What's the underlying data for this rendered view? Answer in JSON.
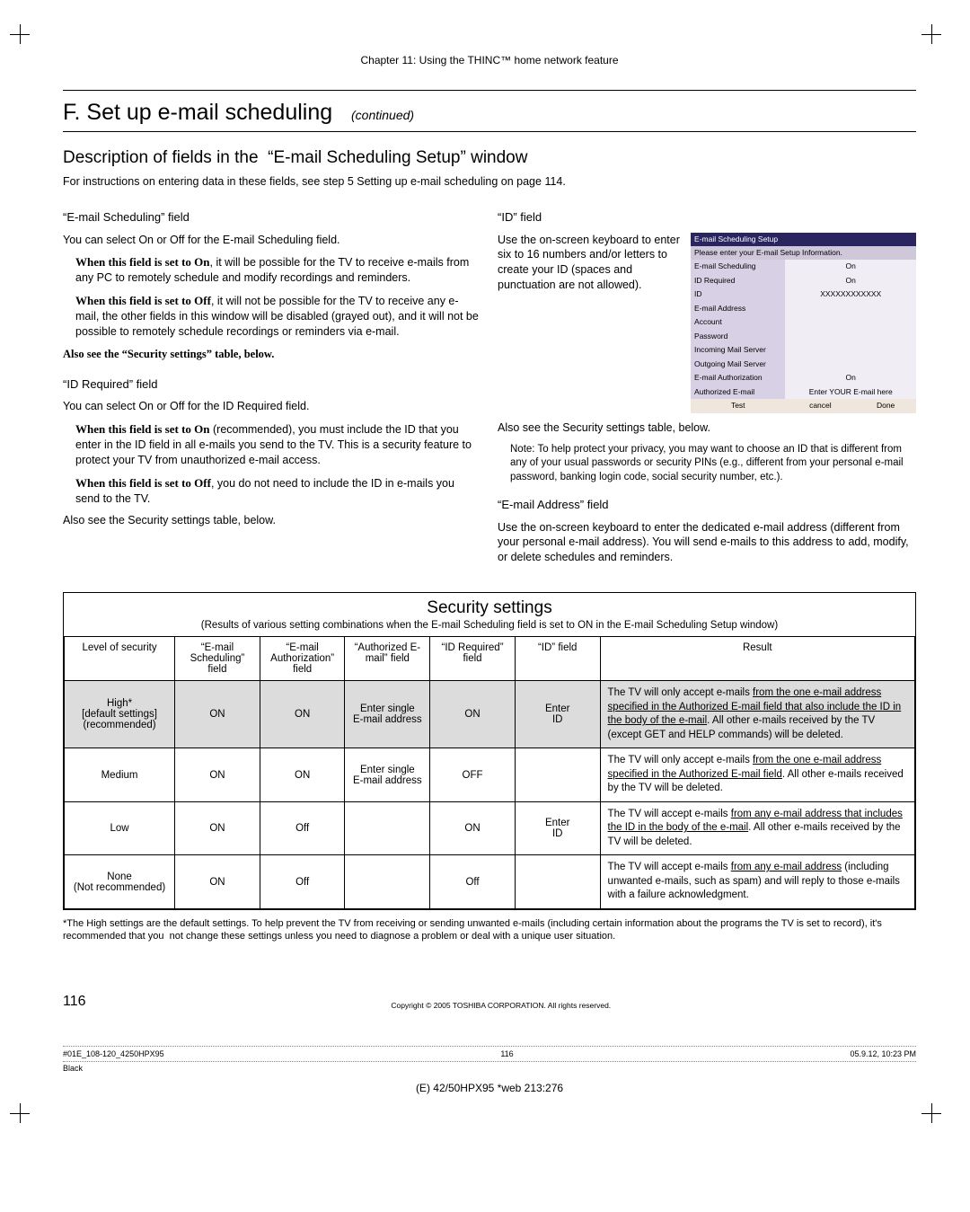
{
  "chapter": "Chapter 11: Using the THINC™ home network feature",
  "heading": "F. Set up e-mail scheduling",
  "heading_cont": "(continued)",
  "subheading": "Description of fields in the  “E-mail Scheduling Setup” window",
  "intro": "For instructions on entering data in these fields, see step 5 Setting up e-mail scheduling on page 114.",
  "left": {
    "f1_hdr": "“E-mail Scheduling” field",
    "f1_p1": "You can select On or Off for the E-mail Scheduling field.",
    "f1_on_lead": "When this field is set to On",
    "f1_on_rest": ", it will be possible for the TV to receive e-mails from any PC to remotely schedule and modify recordings and reminders.",
    "f1_off_lead": "When this field is set to Off",
    "f1_off_rest": ", it will not be possible for the TV to receive any e-mail, the other fields in this window will be disabled (grayed out), and it will not be possible to remotely schedule recordings or reminders via e-mail.",
    "f1_also": "Also see the “Security settings” table, below.",
    "f2_hdr": "“ID Required” field",
    "f2_p1": "You can select On or Off for the ID Required field.",
    "f2_on_lead": "When this field is set to On",
    "f2_on_rest": " (recommended), you must include the ID that you enter in the ID field in all e-mails you send to the TV. This is a security feature to protect your TV from unauthorized e-mail access.",
    "f2_off_lead": "When this field is set to Off",
    "f2_off_rest": ", you do not need to include the ID in e-mails you send to the TV.",
    "f2_also": "Also see the Security settings table, below."
  },
  "right": {
    "id_hdr": "“ID” field",
    "id_text": "Use the on-screen keyboard to enter six to 16 numbers and/or letters to create your ID (spaces and punctuation are not allowed).",
    "id_also": "Also see the Security settings table, below.",
    "id_note": "Note: To help protect your privacy, you may want to choose an ID that is different from any of your usual passwords or security PINs (e.g., different from your personal e-mail password, banking login code, social security number, etc.).",
    "addr_hdr": "“E-mail Address” field",
    "addr_text": "Use the on-screen keyboard to enter the dedicated e-mail address (different from your personal e-mail address). You will send e-mails to this address to add, modify, or delete schedules and reminders."
  },
  "mini": {
    "title": "E-mail Scheduling Setup",
    "pls": "Please enter your E-mail Setup Information.",
    "rows": [
      [
        "E-mail Scheduling",
        "On"
      ],
      [
        "ID Required",
        "On"
      ],
      [
        "ID",
        "XXXXXXXXXXXX"
      ],
      [
        "E-mail Address",
        ""
      ],
      [
        "Account",
        ""
      ],
      [
        "Password",
        ""
      ],
      [
        "Incoming Mail Server",
        ""
      ],
      [
        "Outgoing Mail Server",
        ""
      ],
      [
        "E-mail Authorization",
        "On"
      ],
      [
        "Authorized E-mail",
        "Enter YOUR E-mail here"
      ]
    ],
    "buttons": [
      "Test",
      "cancel",
      "Done"
    ]
  },
  "sec": {
    "title": "Security settings",
    "sub": "(Results of various setting combinations when the E-mail Scheduling field is set to ON in the E-mail Scheduling Setup window)",
    "headers": [
      "Level of security",
      "“E-mail Scheduling” field",
      "“E-mail Authorization” field",
      "“Authorized E-mail” field",
      "“ID Required” field",
      "“ID” field",
      "Result"
    ],
    "rows": [
      {
        "shade": true,
        "level": "High*\n[default settings]\n(recommended)",
        "sched": "ON",
        "auth": "ON",
        "authmail": "Enter single\nE-mail address",
        "idreq": "ON",
        "id": "Enter\nID",
        "result_pre": "The TV will only accept e-mails ",
        "result_u": "from the one e-mail address specified in the Authorized E-mail field that also include the ID in the body of the e-mail",
        "result_post": ". All other e-mails received by the TV (except GET and HELP commands) will be deleted."
      },
      {
        "shade": false,
        "level": "Medium",
        "sched": "ON",
        "auth": "ON",
        "authmail": "Enter single\nE-mail address",
        "idreq": "OFF",
        "id": "",
        "result_pre": "The TV will only accept e-mails ",
        "result_u": "from the one e-mail address specified in the Authorized E-mail field",
        "result_post": ". All other e-mails received by the TV will be deleted."
      },
      {
        "shade": false,
        "level": "Low",
        "sched": "ON",
        "auth": "Off",
        "authmail": "",
        "idreq": "ON",
        "id": "Enter\nID",
        "result_pre": "The TV will accept e-mails ",
        "result_u": "from any e-mail address that includes the ID in the body of the e-mail",
        "result_post": ". All other e-mails received by the TV will be deleted."
      },
      {
        "shade": false,
        "level": "None\n(Not recommended)",
        "sched": "ON",
        "auth": "Off",
        "authmail": "",
        "idreq": "Off",
        "id": "",
        "result_pre": "The TV will accept e-mails ",
        "result_u": "from any e-mail address",
        "result_post": " (including unwanted e-mails, such as spam) and will reply to those e-mails with a failure acknowledgment."
      }
    ],
    "footnote": "*The High settings are the default settings. To help prevent the TV from receiving or sending unwanted e-mails (including certain information about the programs the TV is set to record), it's recommended that you  not change these settings unless you need to diagnose a problem or deal with a unique user situation."
  },
  "page_num": "116",
  "copyright": "Copyright © 2005 TOSHIBA CORPORATION. All rights reserved.",
  "footer": {
    "left": "#01E_108-120_4250HPX95",
    "mid": "116",
    "right": "05.9.12, 10:23 PM",
    "black": "Black",
    "model": "(E) 42/50HPX95 *web 213:276"
  }
}
